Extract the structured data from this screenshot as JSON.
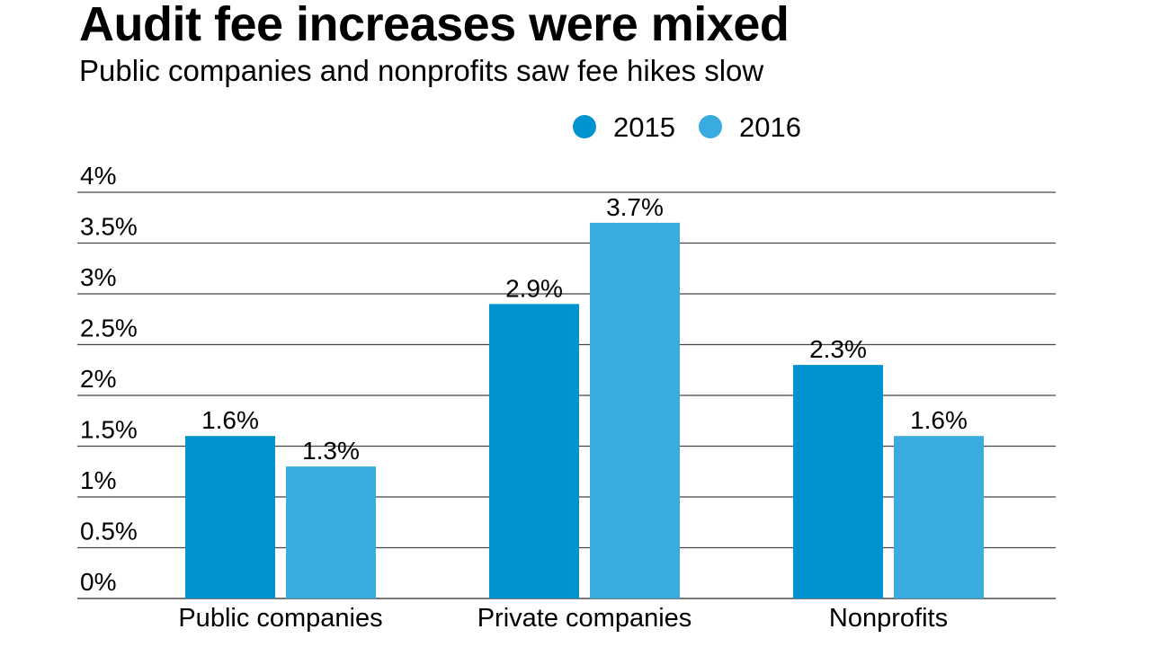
{
  "chart_data": {
    "type": "bar",
    "title": "Audit fee increases were mixed",
    "subtitle": "Public companies and nonprofits saw fee hikes slow",
    "categories": [
      "Public companies",
      "Private companies",
      "Nonprofits"
    ],
    "series": [
      {
        "name": "2015",
        "color": "#0093d0",
        "values": [
          1.6,
          2.9,
          2.3
        ],
        "labels": [
          "1.6%",
          "2.9%",
          "2.3%"
        ]
      },
      {
        "name": "2016",
        "color": "#3aabde",
        "values": [
          1.3,
          3.7,
          1.6
        ],
        "labels": [
          "1.3%",
          "3.7%",
          "1.6%"
        ]
      }
    ],
    "ylim": [
      0,
      4
    ],
    "yticks": [
      0,
      0.5,
      1,
      1.5,
      2,
      2.5,
      3,
      3.5,
      4
    ],
    "ytick_labels": [
      "0%",
      "0.5%",
      "1%",
      "1.5%",
      "2%",
      "2.5%",
      "3%",
      "3.5%",
      "4%"
    ],
    "xlabel": "",
    "ylabel": "",
    "grid": true,
    "legend_position": "top-right"
  }
}
